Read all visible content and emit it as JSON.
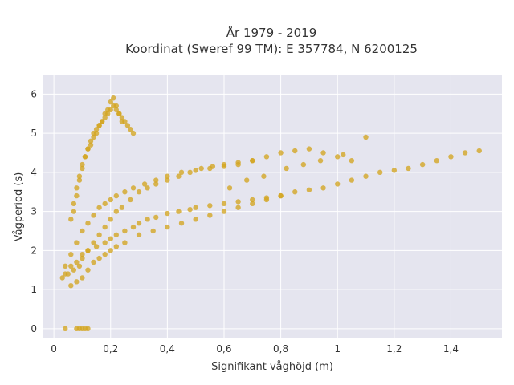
{
  "chart_data": {
    "type": "scatter",
    "title_line1": "År 1979 - 2019",
    "title_line2": "Koordinat (Sweref 99 TM): E 357784, N 6200125",
    "xlabel": "Signifikant våghöjd (m)",
    "ylabel": "Vågperiod (s)",
    "xlim": [
      -0.04,
      1.58
    ],
    "ylim": [
      -0.25,
      6.5
    ],
    "x_ticks": [
      0,
      0.2,
      0.4,
      0.6,
      0.8,
      1,
      1.2,
      1.4
    ],
    "x_tick_labels": [
      "0",
      "0,2",
      "0,4",
      "0,6",
      "0,8",
      "1",
      "1,2",
      "1,4"
    ],
    "y_ticks": [
      0,
      1,
      2,
      3,
      4,
      5,
      6
    ],
    "y_tick_labels": [
      "0",
      "1",
      "2",
      "3",
      "4",
      "5",
      "6"
    ],
    "grid": true,
    "marker_color": "#d4a520",
    "plot_background": "#e5e5ef",
    "series": [
      {
        "x": [
          0.04,
          0.06,
          0.08,
          0.1,
          0.12,
          0.15,
          0.18,
          0.2,
          0.22,
          0.25,
          0.28,
          0.3,
          0.33,
          0.36,
          0.4,
          0.44,
          0.48,
          0.5,
          0.55,
          0.6,
          0.65,
          0.7,
          0.75,
          0.8,
          0.85,
          0.9,
          0.95,
          1.0,
          1.05,
          1.1,
          1.15,
          1.2,
          1.25,
          1.3,
          1.35,
          1.4,
          1.45,
          1.5,
          0.03,
          0.05,
          0.07,
          0.09,
          0.1,
          0.12,
          0.14,
          0.16,
          0.18,
          0.2,
          0.22,
          0.24,
          0.27,
          0.3,
          0.33,
          0.36,
          0.4,
          0.44,
          0.48,
          0.52,
          0.56,
          0.6,
          0.65,
          0.7,
          0.06,
          0.08,
          0.1,
          0.12,
          0.14,
          0.16,
          0.18,
          0.2,
          0.22,
          0.25,
          0.3,
          0.35,
          0.4,
          0.45,
          0.5,
          0.55,
          0.6,
          0.65,
          0.7,
          0.75,
          0.8,
          0.07,
          0.08,
          0.09,
          0.1,
          0.11,
          0.12,
          0.13,
          0.14,
          0.15,
          0.16,
          0.17,
          0.18,
          0.19,
          0.2,
          0.21,
          0.22,
          0.23,
          0.24,
          0.25,
          0.26,
          0.27,
          0.28,
          0.06,
          0.07,
          0.08,
          0.09,
          0.1,
          0.11,
          0.12,
          0.13,
          0.14,
          0.15,
          0.16,
          0.17,
          0.18,
          0.19,
          0.2,
          0.21,
          0.22,
          0.23,
          0.24,
          0.04,
          0.06,
          0.08,
          0.1,
          0.12,
          0.14,
          0.16,
          0.18,
          0.2,
          0.22,
          0.25,
          0.28,
          0.32,
          0.36,
          0.4,
          0.45,
          0.5,
          0.55,
          0.6,
          0.65,
          0.7,
          0.75,
          0.8,
          0.85,
          0.9,
          0.95,
          1.0,
          1.05,
          1.1,
          0.62,
          0.68,
          0.74,
          0.82,
          0.88,
          0.94,
          1.02,
          0.04,
          0.08,
          0.09,
          0.1,
          0.11,
          0.12
        ],
        "y": [
          1.4,
          1.6,
          1.7,
          1.9,
          2.0,
          2.1,
          2.2,
          2.3,
          2.4,
          2.5,
          2.6,
          2.7,
          2.8,
          2.85,
          2.95,
          3.0,
          3.05,
          3.1,
          3.15,
          3.2,
          3.25,
          3.3,
          3.35,
          3.4,
          3.5,
          3.55,
          3.6,
          3.7,
          3.8,
          3.9,
          4.0,
          4.05,
          4.1,
          4.2,
          4.3,
          4.4,
          4.5,
          4.55,
          1.3,
          1.4,
          1.5,
          1.6,
          1.8,
          2.0,
          2.2,
          2.4,
          2.6,
          2.8,
          3.0,
          3.1,
          3.3,
          3.5,
          3.6,
          3.7,
          3.8,
          3.9,
          4.0,
          4.1,
          4.15,
          4.2,
          4.25,
          4.3,
          1.1,
          1.2,
          1.3,
          1.5,
          1.7,
          1.8,
          1.9,
          2.0,
          2.1,
          2.2,
          2.4,
          2.5,
          2.6,
          2.7,
          2.8,
          2.9,
          3.0,
          3.1,
          3.2,
          3.3,
          3.4,
          3.0,
          3.4,
          3.8,
          4.1,
          4.4,
          4.6,
          4.8,
          5.0,
          5.1,
          5.2,
          5.3,
          5.4,
          5.5,
          5.6,
          5.7,
          5.6,
          5.5,
          5.4,
          5.3,
          5.2,
          5.1,
          5.0,
          2.8,
          3.2,
          3.6,
          3.9,
          4.2,
          4.4,
          4.6,
          4.7,
          4.9,
          5.0,
          5.2,
          5.3,
          5.5,
          5.6,
          5.8,
          5.9,
          5.7,
          5.5,
          5.3,
          1.6,
          1.9,
          2.2,
          2.5,
          2.7,
          2.9,
          3.1,
          3.2,
          3.3,
          3.4,
          3.5,
          3.6,
          3.7,
          3.8,
          3.9,
          4.0,
          4.05,
          4.1,
          4.15,
          4.2,
          4.3,
          4.4,
          4.5,
          4.55,
          4.6,
          4.5,
          4.4,
          4.3,
          4.9,
          3.6,
          3.8,
          3.9,
          4.1,
          4.2,
          4.3,
          4.45,
          0.0,
          0.0,
          0.0,
          0.0,
          0.0,
          0.0
        ]
      }
    ]
  }
}
